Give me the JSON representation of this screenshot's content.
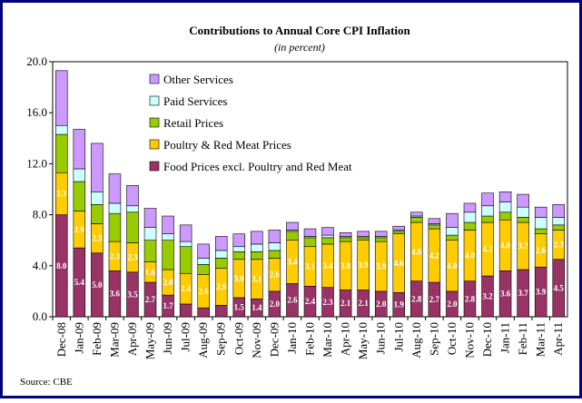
{
  "chart_data": {
    "type": "stacked_bar",
    "title": "Contributions to Annual Core CPI Inflation",
    "subtitle": "(in percent)",
    "source": "Source: CBE",
    "categories": [
      "Dec-08",
      "Jan-09",
      "Feb-09",
      "Mar-09",
      "Apr-09",
      "May-09",
      "Jun-09",
      "Jul-09",
      "Aug-09",
      "Sep-09",
      "Oct-09",
      "Nov-09",
      "Dec-09",
      "Jan-10",
      "Feb-10",
      "Mar-10",
      "Apr-10",
      "May-10",
      "Jun-10",
      "Jul-10",
      "Aug-10",
      "Sep-10",
      "Oct-10",
      "Nov-10",
      "Dec-10",
      "Jan-11",
      "Feb-11",
      "Mar-11",
      "Apr-11"
    ],
    "series": [
      {
        "name": "Food Prices excl. Poultry and Red Meat",
        "color": "#993366",
        "values": [
          8.0,
          5.4,
          5.0,
          3.6,
          3.5,
          2.7,
          1.7,
          1.0,
          0.7,
          0.9,
          1.5,
          1.4,
          2.0,
          2.6,
          2.4,
          2.3,
          2.1,
          2.1,
          2.0,
          1.9,
          2.8,
          2.7,
          2.0,
          2.8,
          3.2,
          3.6,
          3.7,
          3.9,
          4.5
        ],
        "value_labels": [
          "8.0",
          "5.4",
          "5.0",
          "3.6",
          "3.5",
          "2.7",
          "1.7",
          null,
          null,
          null,
          "1.5",
          "1.4",
          "2.0",
          "2.6",
          "2.4",
          "2.3",
          "2.1",
          "2.1",
          "2.0",
          "1.9",
          "2.8",
          "2.7",
          "2.0",
          "2.8",
          "3.2",
          "3.6",
          "3.7",
          "3.9",
          "4.5"
        ]
      },
      {
        "name": "Poultry & Red Meat Prices",
        "color": "#ffcc00",
        "values": [
          3.3,
          2.9,
          2.3,
          2.3,
          2.3,
          1.6,
          2.0,
          2.4,
          2.6,
          2.9,
          3.0,
          3.1,
          2.6,
          3.4,
          3.1,
          3.4,
          3.8,
          3.9,
          3.9,
          4.6,
          4.6,
          4.2,
          4.0,
          4.0,
          4.2,
          4.0,
          3.7,
          2.6,
          2.3
        ],
        "value_labels": [
          "3.3",
          "2.9",
          "2.3",
          "2.3",
          "2.3",
          "1.6",
          "2.0",
          "2.4",
          "2.6",
          "2.9",
          "3.0",
          "3.1",
          "2.6",
          "3.4",
          "3.1",
          "3.4",
          "3.8",
          "3.9",
          "3.9",
          "4.6",
          "4.6",
          "4.2",
          "4.0",
          "4.0",
          "4.2",
          "4.0",
          "3.7",
          "2.6",
          "2.3"
        ]
      },
      {
        "name": "Retail Prices",
        "color": "#99cc00",
        "values": [
          3.0,
          2.3,
          1.5,
          2.2,
          2.4,
          1.7,
          2.3,
          2.1,
          0.8,
          0.8,
          0.6,
          0.6,
          0.6,
          0.7,
          0.7,
          0.5,
          0.3,
          0.2,
          0.3,
          0.2,
          0.4,
          0.3,
          0.4,
          0.6,
          0.5,
          0.6,
          0.4,
          0.4,
          0.4
        ]
      },
      {
        "name": "Paid Services",
        "color": "#ccffff",
        "values": [
          0.7,
          1.0,
          1.0,
          0.8,
          0.5,
          1.0,
          0.5,
          0.4,
          0.5,
          0.6,
          0.4,
          0.6,
          0.6,
          0.1,
          0.1,
          0.2,
          0.1,
          0.1,
          0.1,
          0.1,
          0.1,
          0.1,
          0.6,
          0.8,
          0.8,
          0.8,
          0.8,
          0.9,
          0.6
        ]
      },
      {
        "name": "Other Services",
        "color": "#cc99ff",
        "values": [
          4.3,
          3.1,
          3.8,
          2.3,
          1.6,
          1.5,
          1.4,
          1.3,
          1.1,
          1.1,
          1.0,
          1.0,
          1.0,
          0.6,
          0.6,
          0.6,
          0.3,
          0.4,
          0.4,
          0.3,
          0.3,
          0.4,
          1.1,
          0.7,
          1.0,
          0.8,
          1.0,
          0.8,
          1.0
        ]
      }
    ],
    "ylim": [
      0,
      20
    ],
    "yticks": [
      {
        "value": 0,
        "label": "0.0"
      },
      {
        "value": 4,
        "label": "4.0"
      },
      {
        "value": 8,
        "label": "8.0"
      },
      {
        "value": 12,
        "label": "12.0"
      },
      {
        "value": 16,
        "label": "16.0"
      },
      {
        "value": 20,
        "label": "20.0"
      }
    ]
  }
}
